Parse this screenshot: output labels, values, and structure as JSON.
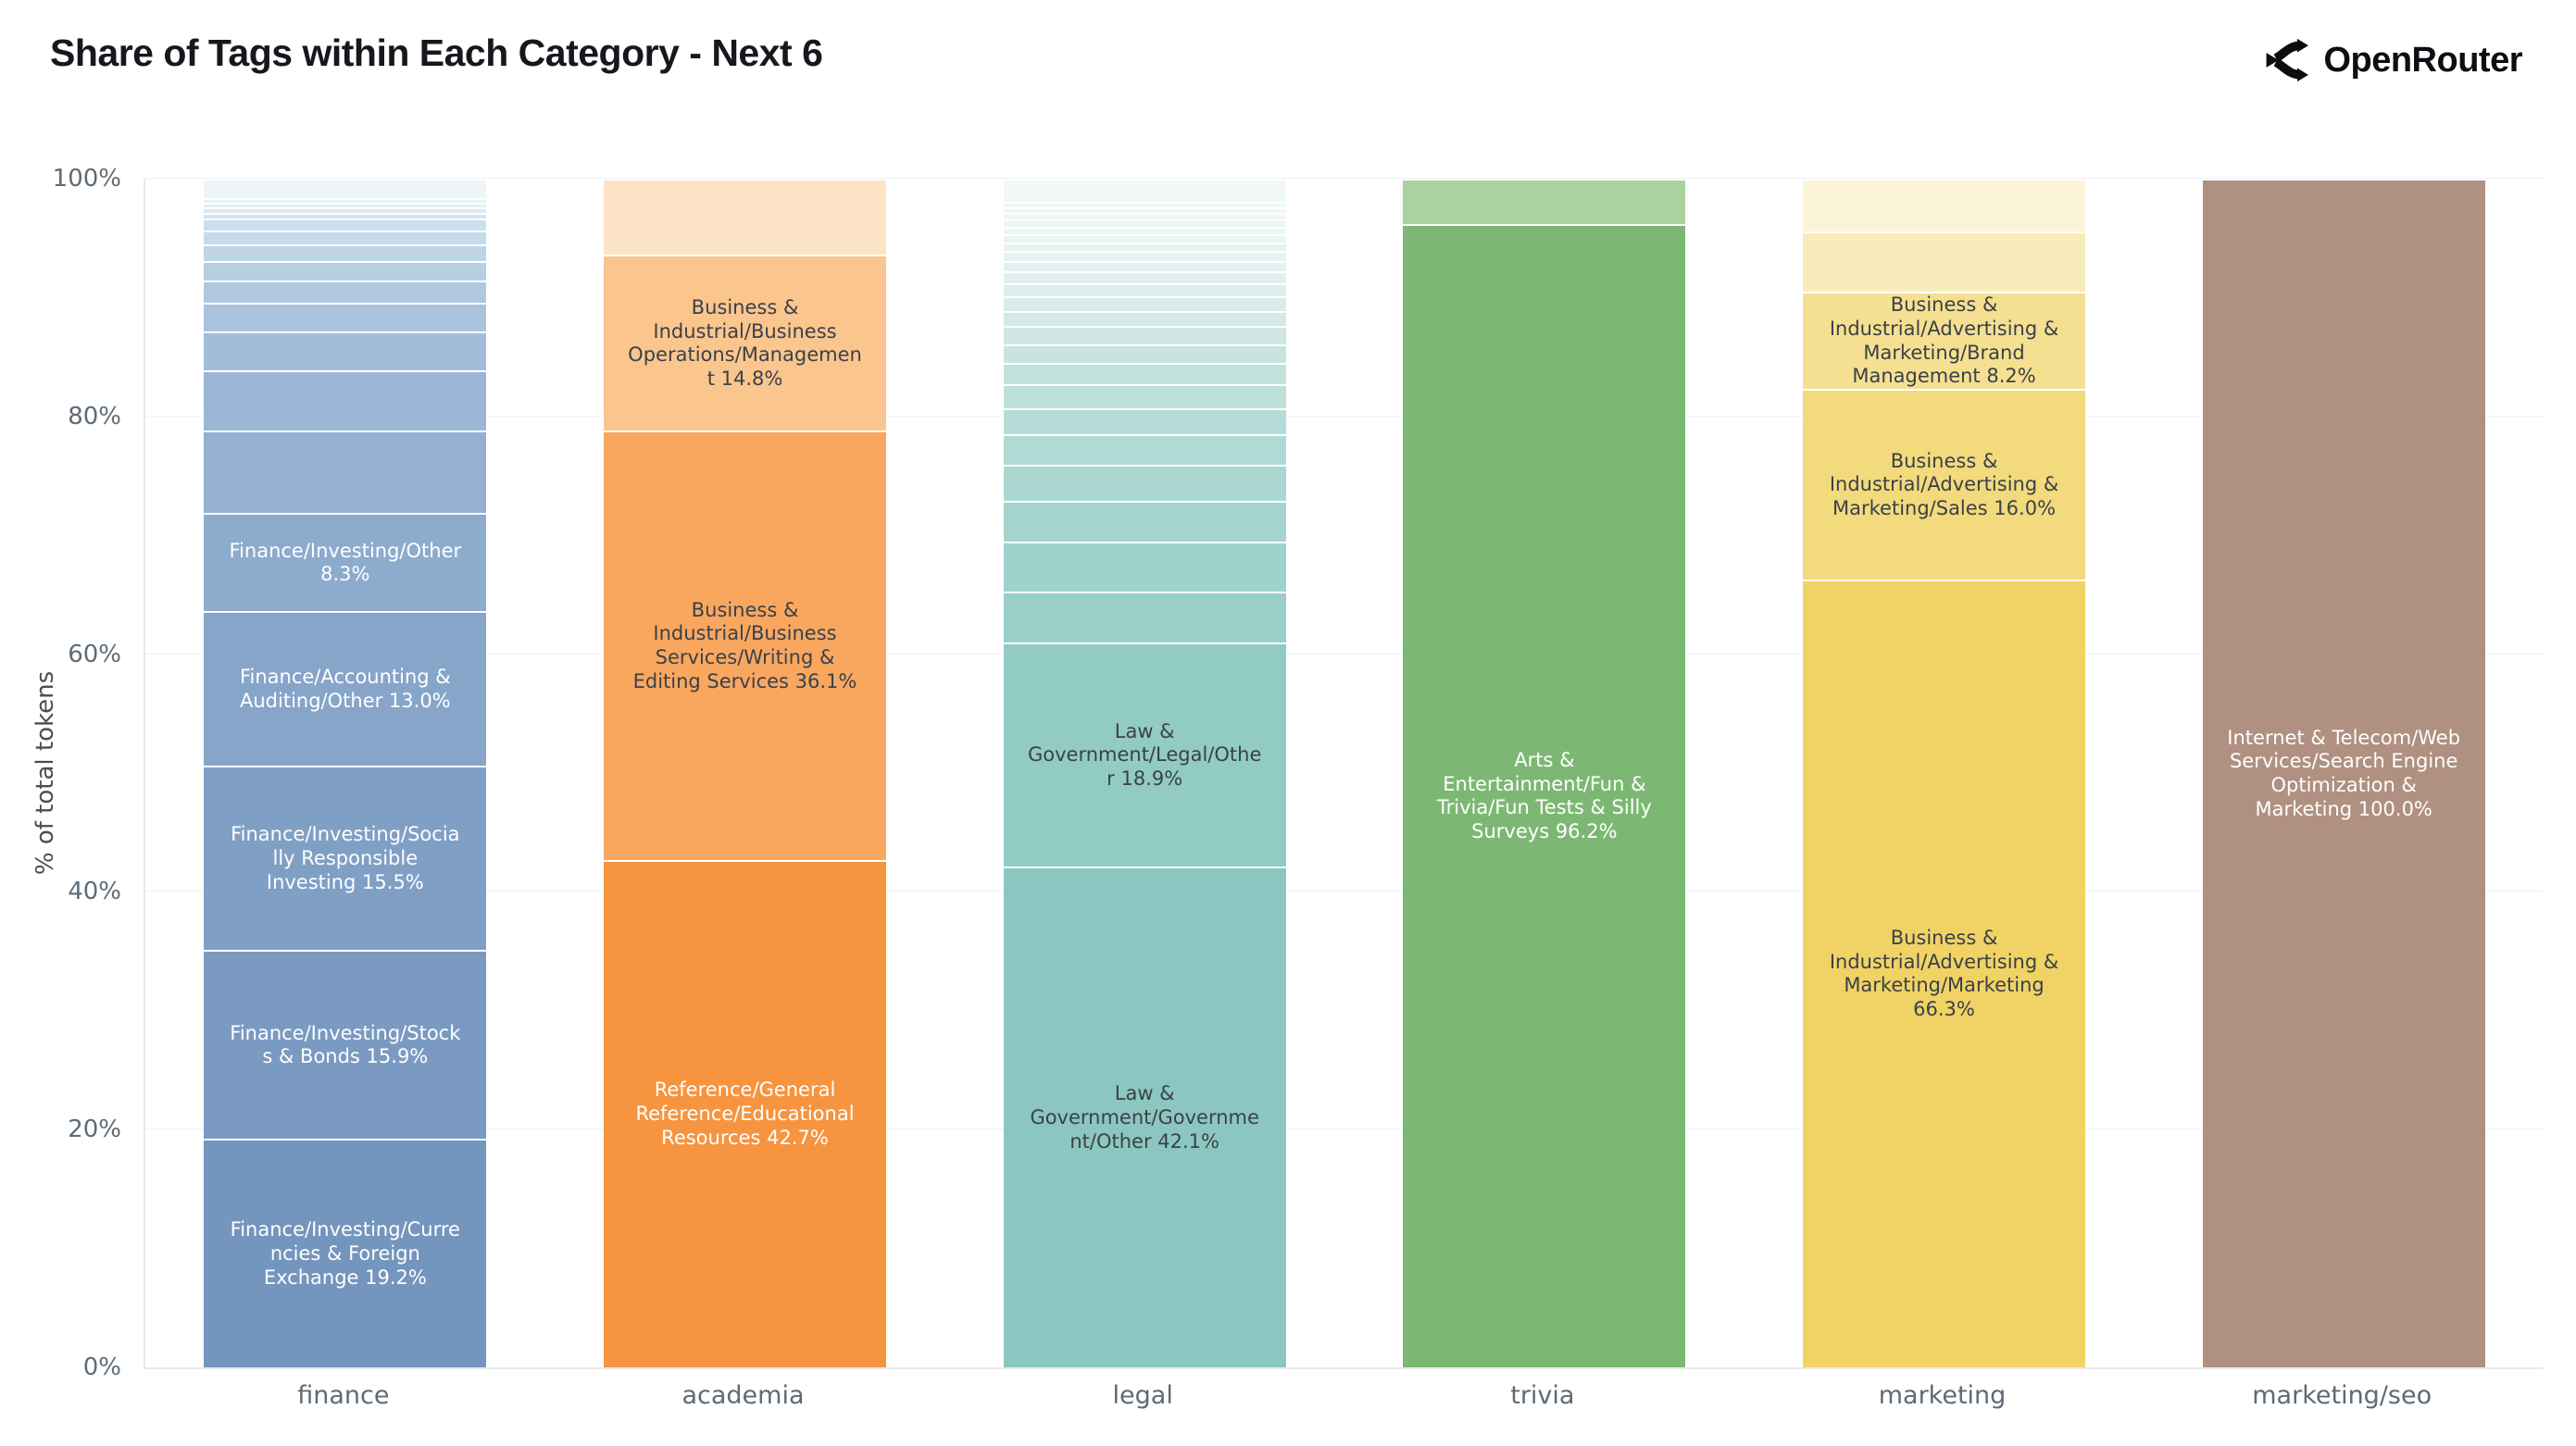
{
  "header": {
    "title": "Share of Tags within Each Category - Next 6",
    "brand": "OpenRouter"
  },
  "chart_data": {
    "type": "bar",
    "stacked": true,
    "normalized": "percent",
    "title": "Share of Tags within Each Category - Next 6",
    "xlabel": "",
    "ylabel": "% of total tokens",
    "ylim": [
      0,
      100
    ],
    "yticks": [
      "0%",
      "20%",
      "40%",
      "60%",
      "80%",
      "100%"
    ],
    "grid": true,
    "legend": "none",
    "categories": [
      "finance",
      "academia",
      "legal",
      "trivia",
      "marketing",
      "marketing/seo"
    ],
    "bars": [
      {
        "category": "finance",
        "base_color": "#7495bd",
        "segments": [
          {
            "label": "Finance/Investing/Currencies & Foreign Exchange",
            "value": 19.2,
            "color": "#7495bd",
            "text_color": "#ffffff"
          },
          {
            "label": "Finance/Investing/Stocks & Bonds",
            "value": 15.9,
            "color": "#7a9ac1",
            "text_color": "#ffffff"
          },
          {
            "label": "Finance/Investing/Socially Responsible Investing",
            "value": 15.5,
            "color": "#809fc5",
            "text_color": "#ffffff"
          },
          {
            "label": "Finance/Accounting & Auditing/Other",
            "value": 13.0,
            "color": "#86a5c9",
            "text_color": "#ffffff"
          },
          {
            "label": "Finance/Investing/Other",
            "value": 8.3,
            "color": "#8dabcd",
            "text_color": "#ffffff"
          },
          {
            "label": "",
            "value": 6.95,
            "color": "#94b1d1"
          },
          {
            "label": "",
            "value": 5.0,
            "color": "#9bb7d5"
          },
          {
            "label": "",
            "value": 3.3,
            "color": "#a2bdd8"
          },
          {
            "label": "",
            "value": 2.4,
            "color": "#a9c3dc"
          },
          {
            "label": "",
            "value": 1.9,
            "color": "#b0c9df"
          },
          {
            "label": "",
            "value": 1.6,
            "color": "#b7cfe3"
          },
          {
            "label": "",
            "value": 1.4,
            "color": "#bed5e6"
          },
          {
            "label": "",
            "value": 1.2,
            "color": "#c5dbe9"
          },
          {
            "label": "",
            "value": 1.0,
            "color": "#ccdfec"
          },
          {
            "label": "",
            "value": 0.5,
            "color": "#d3e4ef"
          },
          {
            "label": "",
            "value": 0.45,
            "color": "#dae9f1"
          },
          {
            "label": "",
            "value": 0.4,
            "color": "#e0edf4"
          },
          {
            "label": "",
            "value": 0.4,
            "color": "#e6f1f6"
          },
          {
            "label": "",
            "value": 1.6,
            "color": "#eef6fa"
          }
        ]
      },
      {
        "category": "academia",
        "base_color": "#f7943f",
        "segments": [
          {
            "label": "Reference/General Reference/Educational Resources",
            "value": 42.7,
            "color": "#f7943f",
            "text_color": "#ffffff"
          },
          {
            "label": "Business & Industrial/Business Services/Writing & Editing Services",
            "value": 36.1,
            "color": "#f9a75f",
            "text_color": "#3a4149"
          },
          {
            "label": "Business & Industrial/Business Operations/Management",
            "value": 14.8,
            "color": "#fbc58e",
            "text_color": "#3a4149"
          },
          {
            "label": "",
            "value": 6.4,
            "color": "#fde3c6"
          }
        ]
      },
      {
        "category": "legal",
        "base_color": "#8bc7c0",
        "segments": [
          {
            "label": "Law & Government/Government/Other",
            "value": 42.1,
            "color": "#8bc7c0",
            "text_color": "#3a4149"
          },
          {
            "label": "Law & Government/Legal/Other",
            "value": 18.9,
            "color": "#92cbc4",
            "text_color": "#3a4149"
          },
          {
            "label": "",
            "value": 4.3,
            "color": "#99cfc8"
          },
          {
            "label": "",
            "value": 4.2,
            "color": "#9fd2cb"
          },
          {
            "label": "",
            "value": 3.4,
            "color": "#a5d4ce"
          },
          {
            "label": "",
            "value": 3.0,
            "color": "#abd7d1"
          },
          {
            "label": "",
            "value": 2.6,
            "color": "#b1dad4"
          },
          {
            "label": "",
            "value": 2.2,
            "color": "#b7dcd7"
          },
          {
            "label": "",
            "value": 2.0,
            "color": "#bddfda"
          },
          {
            "label": "",
            "value": 1.8,
            "color": "#c3e1dd"
          },
          {
            "label": "",
            "value": 1.6,
            "color": "#c9e4e0"
          },
          {
            "label": "",
            "value": 1.5,
            "color": "#cfe6e3"
          },
          {
            "label": "",
            "value": 1.3,
            "color": "#d4e9e6"
          },
          {
            "label": "",
            "value": 1.2,
            "color": "#d9ebe9"
          },
          {
            "label": "",
            "value": 1.1,
            "color": "#ddeeec"
          },
          {
            "label": "",
            "value": 1.0,
            "color": "#e1f0ee"
          },
          {
            "label": "",
            "value": 0.9,
            "color": "#e4f1f0"
          },
          {
            "label": "",
            "value": 0.8,
            "color": "#e7f3f1"
          },
          {
            "label": "",
            "value": 0.75,
            "color": "#e9f4f2"
          },
          {
            "label": "",
            "value": 0.7,
            "color": "#eaf5f3"
          },
          {
            "label": "",
            "value": 0.65,
            "color": "#ebf5f4"
          },
          {
            "label": "",
            "value": 0.6,
            "color": "#ecf6f5"
          },
          {
            "label": "",
            "value": 0.5,
            "color": "#edf7f5"
          },
          {
            "label": "",
            "value": 0.5,
            "color": "#eef7f6"
          },
          {
            "label": "",
            "value": 0.5,
            "color": "#eff8f7"
          },
          {
            "label": "",
            "value": 1.9,
            "color": "#f1f9f8"
          }
        ]
      },
      {
        "category": "trivia",
        "base_color": "#7cb873",
        "segments": [
          {
            "label": "Arts & Entertainment/Fun & Trivia/Fun Tests & Silly Surveys",
            "value": 96.2,
            "color": "#7cb873",
            "text_color": "#ffffff"
          },
          {
            "label": "",
            "value": 3.8,
            "color": "#aad2a1"
          }
        ]
      },
      {
        "category": "marketing",
        "base_color": "#f0d364",
        "segments": [
          {
            "label": "Business & Industrial/Advertising & Marketing/Marketing",
            "value": 66.3,
            "color": "#f0d364",
            "text_color": "#3a4149"
          },
          {
            "label": "Business & Industrial/Advertising & Marketing/Sales",
            "value": 16.0,
            "color": "#f2da7d",
            "text_color": "#3a4149"
          },
          {
            "label": "Business & Industrial/Advertising & Marketing/Brand Management",
            "value": 8.2,
            "color": "#f5e091, #f5e091",
            "text_color": "#3a4149"
          },
          {
            "label": "",
            "value": 5.1,
            "color": "#f9ecbb"
          },
          {
            "label": "",
            "value": 4.4,
            "color": "#fcf4d8"
          }
        ]
      },
      {
        "category": "marketing/seo",
        "base_color": "#b09080",
        "segments": [
          {
            "label": "Internet & Telecom/Web Services/Search Engine Optimization & Marketing",
            "value": 100.0,
            "color": "#b09080",
            "text_color": "#ffffff"
          }
        ]
      }
    ]
  }
}
